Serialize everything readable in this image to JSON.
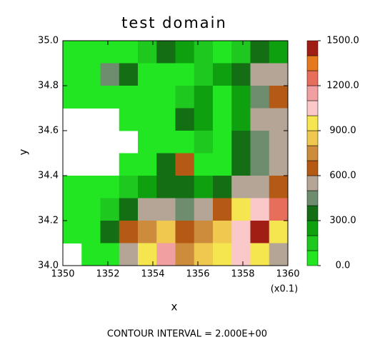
{
  "chart_data": {
    "type": "heatmap",
    "title": "test domain",
    "x_label": "x",
    "y_label": "y",
    "x_scale_note": "(x0.1)",
    "footer": "CONTOUR INTERVAL = 2.000E+00",
    "xlim": [
      1350,
      1360
    ],
    "ylim": [
      34.0,
      35.0
    ],
    "xticks": [
      1350,
      1352,
      1354,
      1356,
      1358,
      1360
    ],
    "yticks": [
      {
        "value": 34.0,
        "label": "34.0"
      },
      {
        "value": 34.2,
        "label": "34.2"
      },
      {
        "value": 34.4,
        "label": "34.4"
      },
      {
        "value": 34.6,
        "label": "34.6"
      },
      {
        "value": 34.8,
        "label": "34.8"
      },
      {
        "value": 35.0,
        "label": "35.0"
      }
    ],
    "z": [
      [
        30,
        30,
        50,
        60,
        150,
        300,
        200,
        100,
        80,
        150,
        350,
        250
      ],
      [
        40,
        30,
        450,
        300,
        40,
        20,
        20,
        150,
        200,
        300,
        500,
        500
      ],
      [
        50,
        40,
        20,
        20,
        20,
        10,
        150,
        200,
        50,
        200,
        400,
        600
      ],
      [
        null,
        null,
        null,
        10,
        20,
        10,
        300,
        200,
        30,
        200,
        500,
        500
      ],
      [
        null,
        null,
        null,
        null,
        10,
        20,
        20,
        100,
        30,
        300,
        400,
        500
      ],
      [
        null,
        null,
        null,
        10,
        20,
        300,
        600,
        30,
        40,
        300,
        400,
        500
      ],
      [
        10,
        20,
        20,
        100,
        200,
        300,
        300,
        200,
        300,
        500,
        500,
        600
      ],
      [
        20,
        30,
        100,
        300,
        500,
        500,
        400,
        500,
        600,
        900,
        1000,
        1200
      ],
      [
        20,
        10,
        300,
        600,
        700,
        800,
        600,
        700,
        800,
        1000,
        1400,
        900
      ],
      [
        null,
        10,
        30,
        500,
        900,
        1100,
        700,
        800,
        900,
        1000,
        900,
        500
      ]
    ],
    "levels": [
      0,
      100,
      200,
      300,
      400,
      500,
      600,
      700,
      800,
      900,
      1000,
      1100,
      1200,
      1300,
      1400,
      1500
    ],
    "colors": [
      "#22e622",
      "#1ec81e",
      "#0fa00f",
      "#146e14",
      "#6e8c6e",
      "#b4a596",
      "#b45a14",
      "#cd8c3c",
      "#f0c850",
      "#f5e650",
      "#fac8c8",
      "#f0a0a0",
      "#e66e5a",
      "#e6781e",
      "#a01e14",
      "#f01e1e"
    ],
    "colorbar_ticks": [
      {
        "value": 0,
        "label": "0.0"
      },
      {
        "value": 300,
        "label": "300.0"
      },
      {
        "value": 600,
        "label": "600.0"
      },
      {
        "value": 900,
        "label": "900.0"
      },
      {
        "value": 1200,
        "label": "1200.0"
      },
      {
        "value": 1500,
        "label": "1500.0"
      }
    ]
  }
}
